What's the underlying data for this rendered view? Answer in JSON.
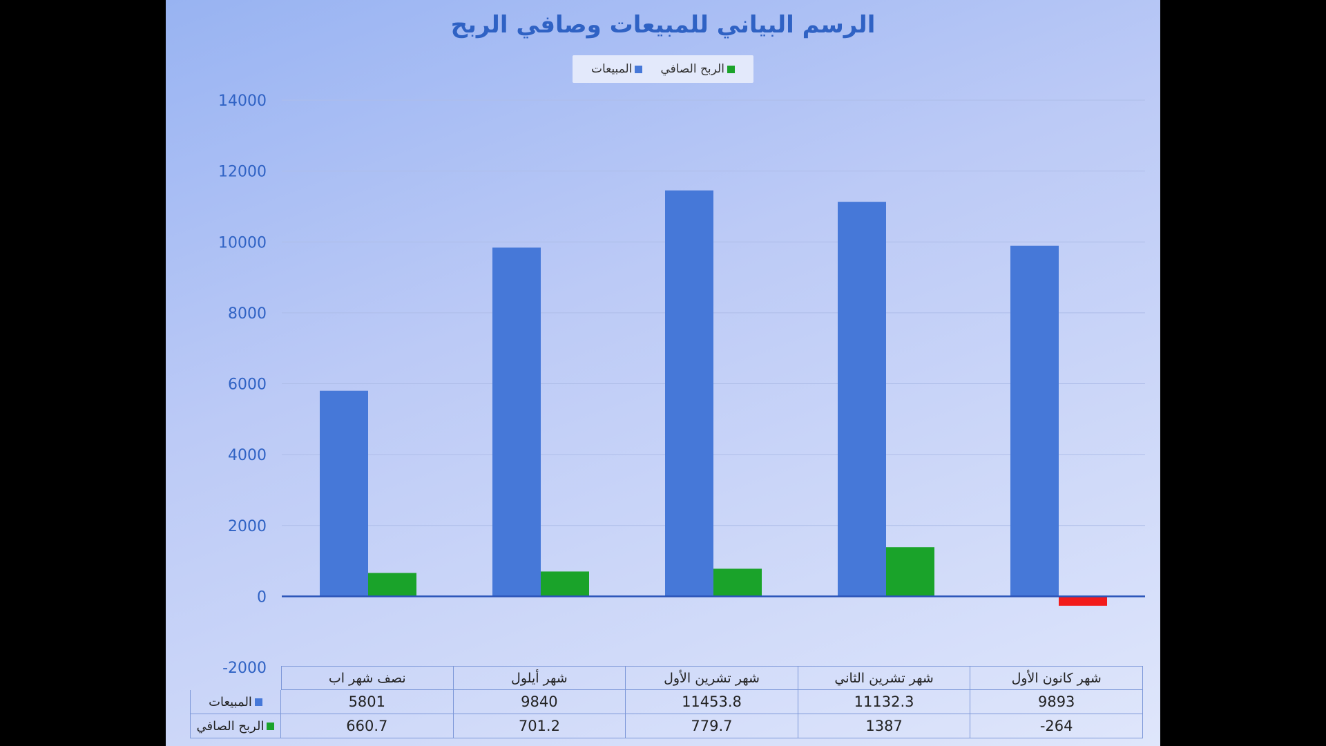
{
  "chart_data": {
    "type": "bar",
    "title": "الرسم البياني للمبيعات وصافي الربح",
    "categories": [
      "نصف شهر اب",
      "شهر أيلول",
      "شهر تشرين الأول",
      "شهر تشرين الثاني",
      "شهر كانون الأول"
    ],
    "series": [
      {
        "name": "المبيعات",
        "values": [
          5801,
          9840,
          11453.8,
          11132.3,
          9893
        ],
        "color": "#4678d8"
      },
      {
        "name": "الربح الصافي",
        "values": [
          660.7,
          701.2,
          779.7,
          1387,
          -264
        ],
        "color": "#1aa32a",
        "negative_color": "#f21b1b"
      }
    ],
    "value_labels": [
      [
        "5801",
        "9840",
        "11453.8",
        "11132.3",
        "9893"
      ],
      [
        "660.7",
        "701.2",
        "779.7",
        "1387",
        "-264"
      ]
    ],
    "ylim": [
      -2000,
      14000
    ],
    "yticks": [
      14000,
      12000,
      10000,
      8000,
      6000,
      4000,
      2000,
      0,
      -2000
    ],
    "grid": true,
    "legend_position": "top",
    "data_table": true
  },
  "colors": {
    "title": "#2f62c4",
    "axis_tick": "#2f62c4",
    "grid": "#aebde8"
  }
}
